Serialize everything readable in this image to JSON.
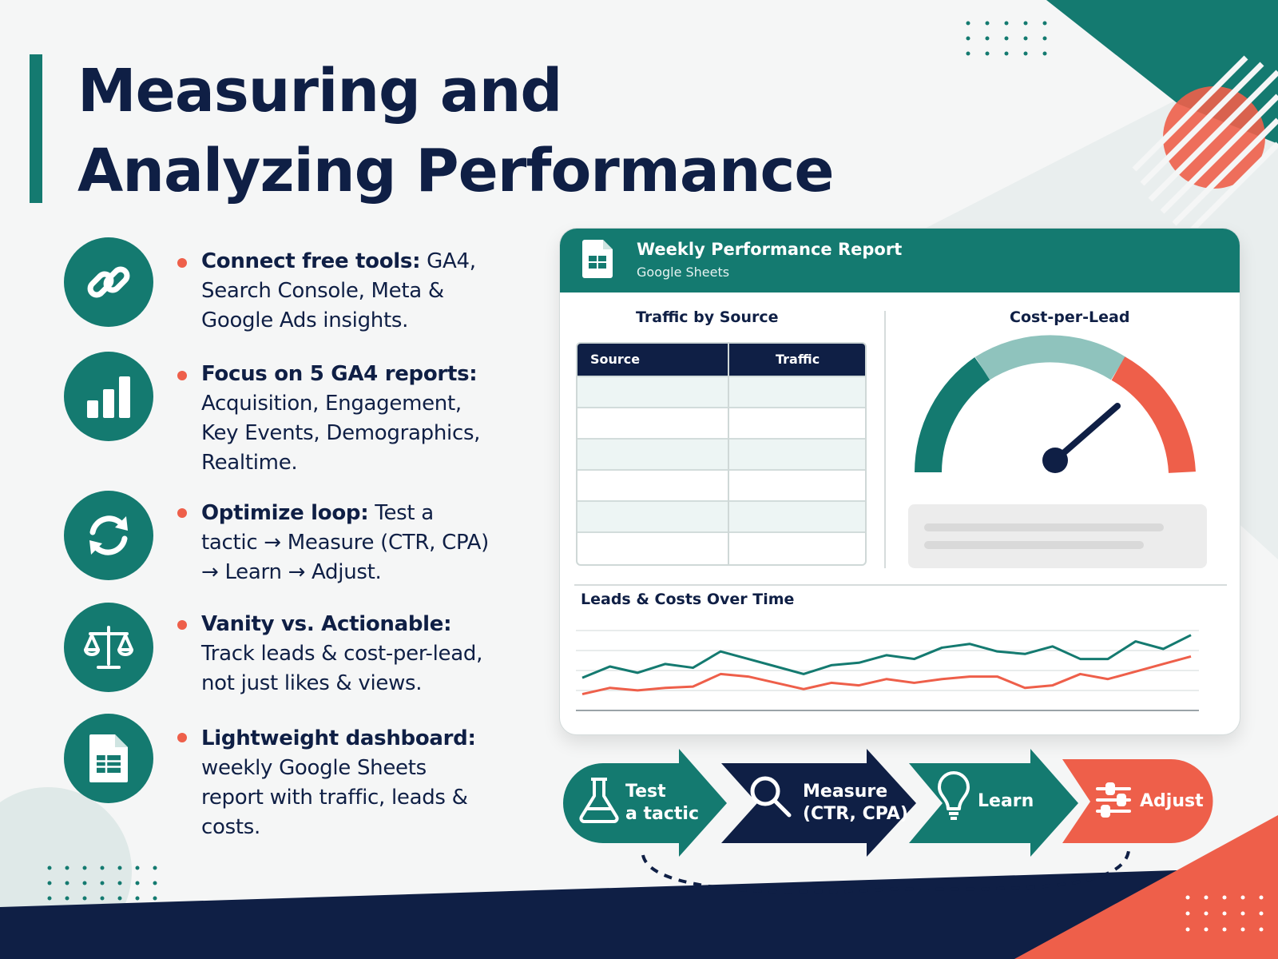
{
  "title": {
    "line1": "Measuring and",
    "line2": "Analyzing Performance"
  },
  "bullets": [
    {
      "icon": "link-icon",
      "bold": "Connect free tools:",
      "text": " GA4, Search Console, Meta & Google Ads insights."
    },
    {
      "icon": "bar-chart-icon",
      "bold": "Focus on 5 GA4 reports:",
      "text": " Acquisition, Engagement, Key Events, Demographics, Realtime."
    },
    {
      "icon": "refresh-icon",
      "bold": "Optimize loop:",
      "text": " Test a tactic → Measure (CTR, CPA) → Learn → Adjust."
    },
    {
      "icon": "scales-icon",
      "bold": "Vanity vs. Actionable:",
      "text": " Track leads & cost-per-lead, not just likes & views."
    },
    {
      "icon": "spreadsheet-icon",
      "bold": "Lightweight dashboard:",
      "text": " weekly Google Sheets report with traffic, leads & costs."
    }
  ],
  "report": {
    "title": "Weekly Performance Report",
    "subtitle": "Google Sheets",
    "traffic_title": "Traffic by Source",
    "table_headers": [
      "Source",
      "Traffic"
    ],
    "cpl_title": "Cost-per-Lead",
    "chart_title": "Leads & Costs Over Time"
  },
  "flow": [
    {
      "line1": "Test",
      "line2": "a tactic",
      "color": "#147a70",
      "icon": "flask-icon"
    },
    {
      "line1": "Measure",
      "line2": "(CTR, CPA)",
      "color": "#0f1f45",
      "icon": "magnifier-icon"
    },
    {
      "line1": "Learn",
      "line2": "",
      "color": "#147a70",
      "icon": "lightbulb-icon"
    },
    {
      "line1": "Adjust",
      "line2": "",
      "color": "#ee5f4a",
      "icon": "sliders-icon"
    }
  ],
  "colors": {
    "teal": "#147a70",
    "navy": "#0f1f45",
    "coral": "#ee5f4a",
    "mint": "#8fc3bd"
  },
  "chart_data": {
    "type": "line",
    "title": "Leads & Costs Over Time",
    "x": [
      1,
      2,
      3,
      4,
      5,
      6,
      7,
      8,
      9,
      10,
      11,
      12,
      13,
      14,
      15,
      16,
      17,
      18,
      19,
      20,
      21,
      22,
      23
    ],
    "series": [
      {
        "values": [
          26,
          35,
          30,
          37,
          34,
          47,
          41,
          35,
          29,
          36,
          38,
          44,
          41,
          50,
          53,
          47,
          45,
          51,
          41,
          41,
          55,
          49,
          60
        ]
      },
      {
        "values": [
          13,
          18,
          16,
          18,
          19,
          29,
          27,
          22,
          17,
          22,
          20,
          25,
          22,
          25,
          27,
          27,
          18,
          20,
          29,
          25,
          31,
          37,
          43
        ]
      }
    ],
    "ylim": [
      0,
      70
    ],
    "grid": true
  }
}
